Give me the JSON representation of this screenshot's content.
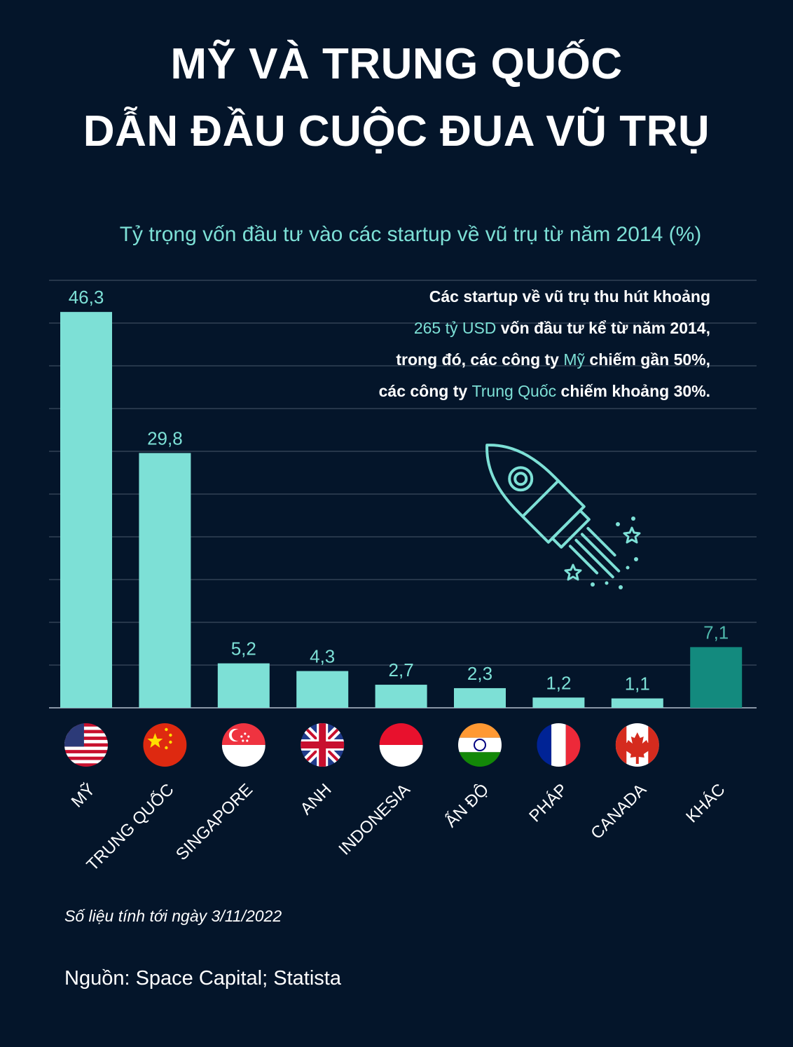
{
  "header": {
    "title_line1": "MỸ VÀ TRUNG QUỐC",
    "title_line2": "DẪN ĐẦU CUỘC ĐUA VŨ TRỤ"
  },
  "annotation": {
    "line1": "Các startup về vũ trụ thu hút khoảng",
    "line2_highlight": "265 tỷ USD",
    "line2_rest": " vốn đầu tư kể từ năm 2014,",
    "line3_pre": "trong đó, các công ty ",
    "line3_highlight": "Mỹ",
    "line3_post": " chiếm gần 50%,",
    "line4_pre": "các công ty ",
    "line4_highlight": "Trung Quốc",
    "line4_post": " chiếm khoảng 30%."
  },
  "footer": {
    "footnote": "Số liệu tính tới ngày 3/11/2022",
    "source": "Nguồn: Space Capital; Statista"
  },
  "colors": {
    "background": "#04152a",
    "bar": "#7de0d6",
    "bar_other": "#138a7e",
    "label_other": "#4fb7ab",
    "grid": "#3b4a5e"
  },
  "chart_data": {
    "type": "bar",
    "title": "Tỷ trọng vốn đầu tư vào các startup về vũ trụ từ năm 2014 (%)",
    "categories": [
      "MỸ",
      "TRUNG QUỐC",
      "SINGAPORE",
      "ANH",
      "INDONESIA",
      "ẤN ĐỘ",
      "PHÁP",
      "CANADA",
      "KHÁC"
    ],
    "value_labels": [
      "46,3",
      "29,8",
      "5,2",
      "4,3",
      "2,7",
      "2,3",
      "1,2",
      "1,1",
      "7,1"
    ],
    "values": [
      46.3,
      29.8,
      5.2,
      4.3,
      2.7,
      2.3,
      1.2,
      1.1,
      7.1
    ],
    "flags": [
      "us-flag-icon",
      "china-flag-icon",
      "singapore-flag-icon",
      "uk-flag-icon",
      "indonesia-flag-icon",
      "india-flag-icon",
      "france-flag-icon",
      "canada-flag-icon",
      ""
    ],
    "ylim": [
      0,
      50
    ],
    "grid": true
  }
}
